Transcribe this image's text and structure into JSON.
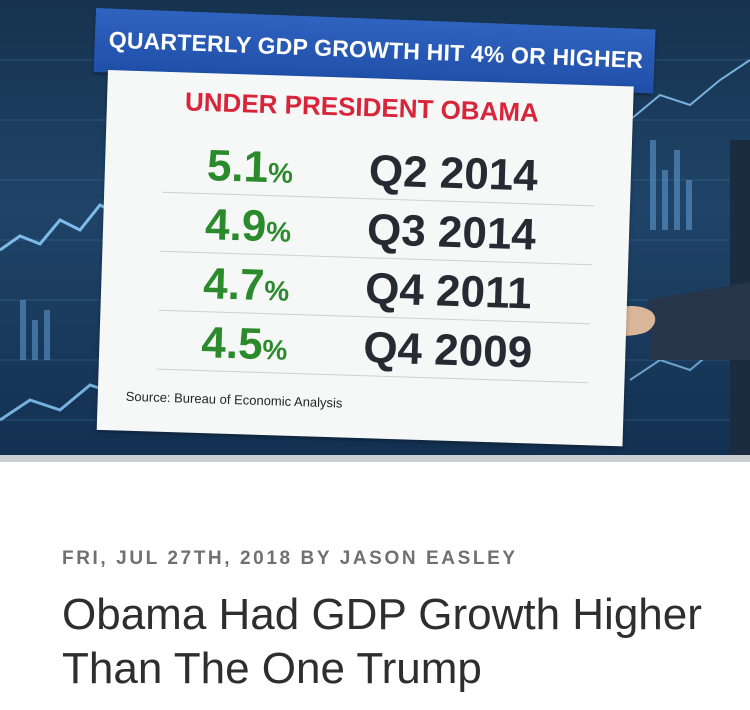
{
  "image": {
    "banner": "QUARTERLY GDP GROWTH HIT 4% OR HIGHER",
    "subtitle": "UNDER PRESIDENT OBAMA",
    "rows": [
      {
        "value": "5.1",
        "unit": "%",
        "period": "Q2 2014"
      },
      {
        "value": "4.9",
        "unit": "%",
        "period": "Q3 2014"
      },
      {
        "value": "4.7",
        "unit": "%",
        "period": "Q4 2011"
      },
      {
        "value": "4.5",
        "unit": "%",
        "period": "Q4 2009"
      }
    ],
    "source": "Source: Bureau of Economic Analysis"
  },
  "article": {
    "meta": "FRI, JUL 27TH, 2018 BY JASON EASLEY",
    "headline": "Obama Had GDP Growth Higher Than The One Trump"
  },
  "colors": {
    "banner_blue": "#2657b4",
    "subtitle_red": "#d9253a",
    "value_green": "#2b8a2b",
    "period_dark": "#262b33",
    "meta_gray": "#707070"
  }
}
